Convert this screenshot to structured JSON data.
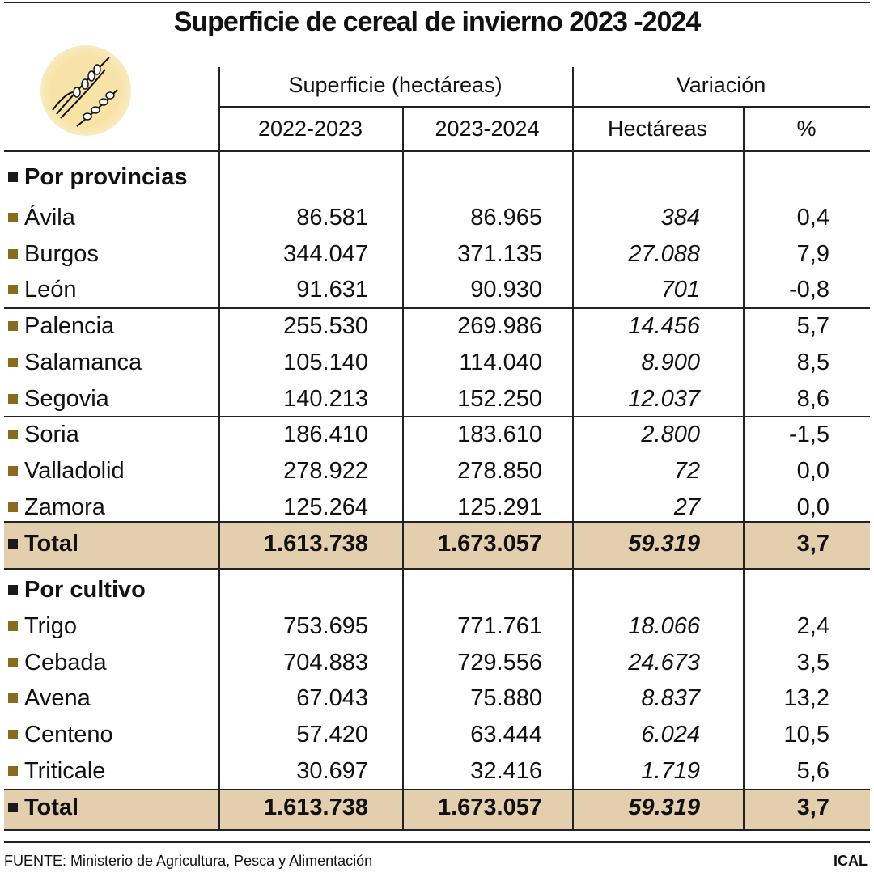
{
  "title": "Superficie de cereal de invierno 2023 -2024",
  "colors": {
    "total_bg": "#e3cfae",
    "bullet_item": "#8a6a1f",
    "bullet_section": "#1a1a1a",
    "logo_bg": "#f7e3a8"
  },
  "logo_icon": "wheat-icon",
  "header": {
    "group1": "Superficie (hectáreas)",
    "group2": "Variación",
    "columns": [
      "2022-2023",
      "2023-2024",
      "Hectáreas",
      "%"
    ]
  },
  "chart_data": {
    "type": "table",
    "sections": [
      {
        "label": "Por provincias",
        "rows": [
          [
            "Ávila",
            "86.581",
            "86.965",
            "384",
            "0,4"
          ],
          [
            "Burgos",
            "344.047",
            "371.135",
            "27.088",
            "7,9"
          ],
          [
            "León",
            "91.631",
            "90.930",
            "701",
            "-0,8"
          ],
          [
            "Palencia",
            "255.530",
            "269.986",
            "14.456",
            "5,7"
          ],
          [
            "Salamanca",
            "105.140",
            "114.040",
            "8.900",
            "8,5"
          ],
          [
            "Segovia",
            "140.213",
            "152.250",
            "12.037",
            "8,6"
          ],
          [
            "Soria",
            "186.410",
            "183.610",
            "2.800",
            "-1,5"
          ],
          [
            "Valladolid",
            "278.922",
            "278.850",
            "72",
            "0,0"
          ],
          [
            "Zamora",
            "125.264",
            "125.291",
            "27",
            "0,0"
          ]
        ],
        "total": [
          "Total",
          "1.613.738",
          "1.673.057",
          "59.319",
          "3,7"
        ]
      },
      {
        "label": "Por cultivo",
        "rows": [
          [
            "Trigo",
            "753.695",
            "771.761",
            "18.066",
            "2,4"
          ],
          [
            "Cebada",
            "704.883",
            "729.556",
            "24.673",
            "3,5"
          ],
          [
            "Avena",
            "67.043",
            "75.880",
            "8.837",
            "13,2"
          ],
          [
            "Centeno",
            "57.420",
            "63.444",
            "6.024",
            "10,5"
          ],
          [
            "Triticale",
            "30.697",
            "32.416",
            "1.719",
            "5,6"
          ]
        ],
        "total": [
          "Total",
          "1.613.738",
          "1.673.057",
          "59.319",
          "3,7"
        ]
      }
    ]
  },
  "footer": {
    "source": "FUENTE: Ministerio de Agricultura, Pesca y Alimentación",
    "brand": "ICAL"
  }
}
